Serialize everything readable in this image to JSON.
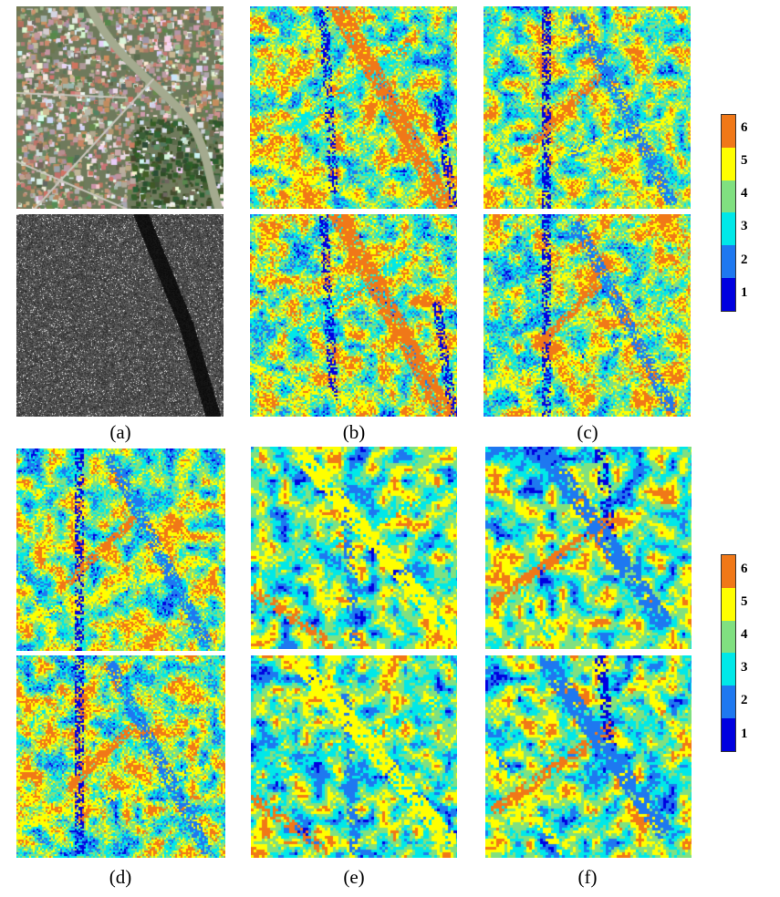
{
  "captions": {
    "a": "(a)",
    "b": "(b)",
    "c": "(c)",
    "d": "(d)",
    "e": "(e)",
    "f": "(f)"
  },
  "colorbar": {
    "labels": [
      "6",
      "5",
      "4",
      "3",
      "2",
      "1"
    ],
    "colors": [
      "#f07818",
      "#ffff00",
      "#80e080",
      "#00e8e8",
      "#1e78f0",
      "#0000e0"
    ]
  },
  "panels": [
    {
      "id": "a-top",
      "kind": "optical-aerial-image"
    },
    {
      "id": "a-bottom",
      "kind": "sar-grayscale-image"
    },
    {
      "id": "b-top",
      "kind": "class-map"
    },
    {
      "id": "b-bottom",
      "kind": "class-map"
    },
    {
      "id": "c-top",
      "kind": "class-map"
    },
    {
      "id": "c-bottom",
      "kind": "class-map"
    },
    {
      "id": "d-top",
      "kind": "class-map"
    },
    {
      "id": "d-bottom",
      "kind": "class-map"
    },
    {
      "id": "e-top",
      "kind": "class-map"
    },
    {
      "id": "e-bottom",
      "kind": "class-map"
    },
    {
      "id": "f-top",
      "kind": "class-map"
    },
    {
      "id": "f-bottom",
      "kind": "class-map"
    }
  ]
}
